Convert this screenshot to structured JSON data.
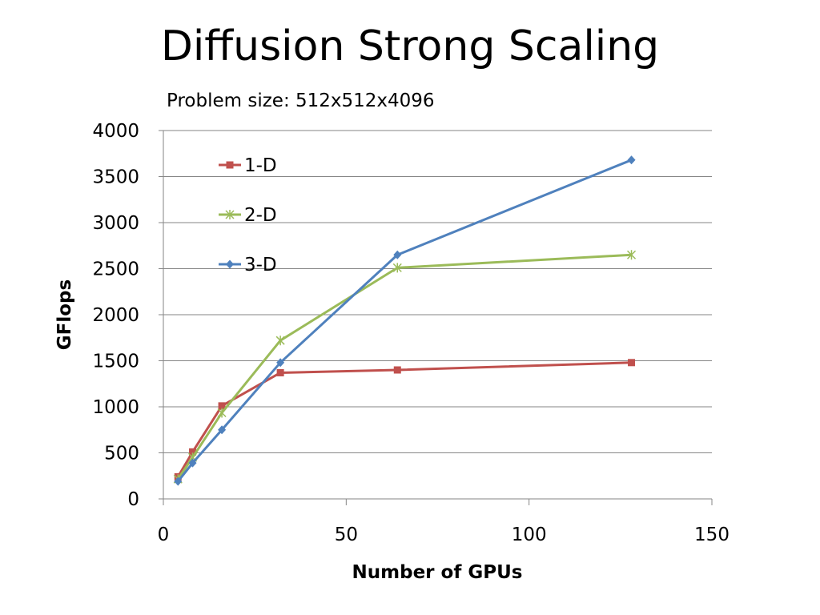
{
  "slide": {
    "title": "Diffusion Strong Scaling"
  },
  "chart_data": {
    "type": "line",
    "title": "Diffusion Strong Scaling",
    "subtitle": "Problem size: 512x512x4096",
    "xlabel": "Number of GPUs",
    "ylabel": "GFlops",
    "xlim": [
      0,
      150
    ],
    "ylim": [
      0,
      4000
    ],
    "xticks": [
      0,
      50,
      100,
      150
    ],
    "yticks": [
      0,
      500,
      1000,
      1500,
      2000,
      2500,
      3000,
      3500,
      4000
    ],
    "grid": "horizontal",
    "legend_position": "top-left",
    "series": [
      {
        "name": "1-D",
        "color": "#C0504D",
        "marker": "square",
        "x": [
          4,
          8,
          16,
          32,
          64,
          128
        ],
        "y": [
          240,
          510,
          1010,
          1370,
          1400,
          1480
        ]
      },
      {
        "name": "2-D",
        "color": "#9BBB59",
        "marker": "star",
        "x": [
          4,
          8,
          16,
          32,
          64,
          128
        ],
        "y": [
          215,
          450,
          935,
          1720,
          2510,
          2650
        ]
      },
      {
        "name": "3-D",
        "color": "#4F81BD",
        "marker": "diamond",
        "x": [
          4,
          8,
          16,
          32,
          64,
          128
        ],
        "y": [
          190,
          390,
          750,
          1480,
          2650,
          3680
        ]
      }
    ]
  }
}
